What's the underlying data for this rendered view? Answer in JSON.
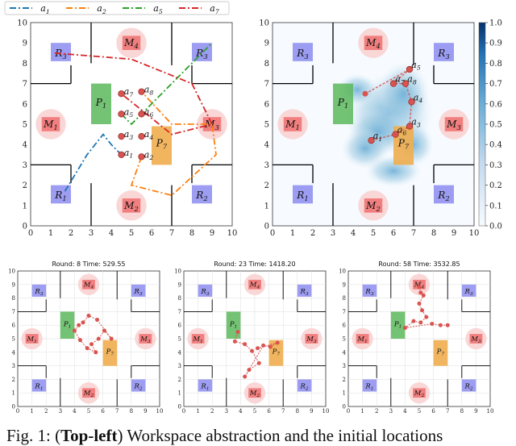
{
  "legend": {
    "items": [
      {
        "label": "a1",
        "color": "#1f77b4",
        "dash": "8,3,2,3"
      },
      {
        "label": "a2",
        "color": "#ff7f0e",
        "dash": "8,3,2,3"
      },
      {
        "label": "a5",
        "color": "#2ca02c",
        "dash": "8,3,2,3"
      },
      {
        "label": "a7",
        "color": "#d62728",
        "dash": "8,3,2,3"
      }
    ]
  },
  "colors": {
    "region_R": "#8c8cf0",
    "region_M_fill": "#f07070",
    "region_M_halo": "#f9d3d3",
    "region_P1": "#5cb85c",
    "region_P7": "#f0ad4e",
    "robot": "#d9534f"
  },
  "colorbar": {
    "ticks": [
      "0.0",
      "0.1",
      "0.2",
      "0.3",
      "0.4",
      "0.5",
      "0.6",
      "0.7",
      "0.8",
      "0.9",
      "1.0"
    ]
  },
  "subplots": [
    {
      "title": "Round: 8  Time: 529.55"
    },
    {
      "title": "Round: 23  Time: 1418.20"
    },
    {
      "title": "Round: 58  Time: 3532.85"
    }
  ],
  "caption": {
    "prefix": "Fig. 1: (",
    "bold": "Top-left",
    "suffix": ") Workspace abstraction and the initial locations"
  },
  "chart_data": [
    {
      "type": "line",
      "panel": "top-left",
      "xlim": [
        0,
        10
      ],
      "ylim": [
        0,
        10
      ],
      "xticks": [
        "0",
        "1",
        "2",
        "3",
        "4",
        "5",
        "6",
        "7",
        "8",
        "9",
        "10"
      ],
      "yticks": [
        "0",
        "1",
        "2",
        "3",
        "4",
        "5",
        "6",
        "7",
        "8",
        "9",
        "10"
      ],
      "regions": [
        {
          "label": "R1",
          "x": 1.5,
          "y": 1.5
        },
        {
          "label": "R2",
          "x": 8.5,
          "y": 1.5
        },
        {
          "label": "R3",
          "x": 1.5,
          "y": 8.5
        },
        {
          "label": "R3",
          "x": 8.5,
          "y": 8.5
        },
        {
          "label": "M1",
          "x": 1,
          "y": 5
        },
        {
          "label": "M2",
          "x": 5,
          "y": 1
        },
        {
          "label": "M3",
          "x": 9,
          "y": 5
        },
        {
          "label": "M4",
          "x": 5,
          "y": 9
        },
        {
          "label": "P1",
          "x": 3.5,
          "y": 5.9
        },
        {
          "label": "P7",
          "x": 6.5,
          "y": 3.7
        }
      ],
      "agents": [
        {
          "label": "a1",
          "x": 4.5,
          "y": 3.5
        },
        {
          "label": "a2",
          "x": 5.5,
          "y": 3.4
        },
        {
          "label": "a3",
          "x": 4.5,
          "y": 4.4
        },
        {
          "label": "a4",
          "x": 5.5,
          "y": 4.4
        },
        {
          "label": "a5",
          "x": 4.5,
          "y": 5.5
        },
        {
          "label": "a6",
          "x": 5.5,
          "y": 5.5
        },
        {
          "label": "a7",
          "x": 4.5,
          "y": 6.5
        },
        {
          "label": "a8",
          "x": 5.5,
          "y": 6.6
        }
      ],
      "series": [
        {
          "name": "a1",
          "points": [
            [
              1.7,
              1.7
            ],
            [
              2.8,
              3.5
            ],
            [
              3.6,
              4.5
            ],
            [
              4.0,
              4.0
            ],
            [
              4.5,
              3.5
            ]
          ]
        },
        {
          "name": "a2",
          "points": [
            [
              5.5,
              3.4
            ],
            [
              5.0,
              2.0
            ],
            [
              7.0,
              1.5
            ],
            [
              9.2,
              3.5
            ],
            [
              9.0,
              5.0
            ],
            [
              7.0,
              5.0
            ],
            [
              5.5,
              6.6
            ]
          ]
        },
        {
          "name": "a5",
          "points": [
            [
              4.5,
              5.5
            ],
            [
              5.0,
              5.0
            ],
            [
              6.0,
              6.0
            ],
            [
              7.5,
              7.5
            ],
            [
              8.5,
              8.5
            ],
            [
              9.0,
              9.0
            ]
          ]
        },
        {
          "name": "a7",
          "points": [
            [
              1.2,
              8.5
            ],
            [
              5.0,
              8.2
            ],
            [
              8.0,
              7.0
            ],
            [
              8.5,
              6.0
            ],
            [
              9.0,
              5.0
            ],
            [
              7.0,
              4.5
            ],
            [
              4.5,
              6.5
            ]
          ]
        }
      ]
    },
    {
      "type": "heatmap",
      "panel": "top-right",
      "xlim": [
        0,
        10
      ],
      "ylim": [
        0,
        10
      ],
      "xticks": [
        "0",
        "1",
        "2",
        "3",
        "4",
        "5",
        "6",
        "7",
        "8",
        "9",
        "10"
      ],
      "yticks": [
        "0",
        "1",
        "2",
        "3",
        "4",
        "5",
        "6",
        "7",
        "8",
        "9",
        "10"
      ],
      "colorbar_range": [
        0.0,
        1.0
      ],
      "agents": [
        {
          "label": "a1",
          "x": 4.9,
          "y": 4.2
        },
        {
          "label": "a3",
          "x": 6.8,
          "y": 4.9
        },
        {
          "label": "a4",
          "x": 6.9,
          "y": 6.1
        },
        {
          "label": "a5",
          "x": 6.8,
          "y": 7.7
        },
        {
          "label": "a6",
          "x": 6.1,
          "y": 4.5
        },
        {
          "label": "a7",
          "x": 6.0,
          "y": 7.0
        },
        {
          "label": "a8",
          "x": 6.6,
          "y": 7.0
        }
      ]
    },
    {
      "type": "scatter",
      "panel": "bottom-1",
      "title": "Round: 8  Time: 529.55",
      "xticks": [
        "0",
        "1",
        "2",
        "3",
        "4",
        "5",
        "6",
        "7",
        "8",
        "9",
        "10"
      ],
      "yticks": [
        "0",
        "1",
        "2",
        "3",
        "4",
        "5",
        "6",
        "7",
        "8",
        "9",
        "10"
      ]
    },
    {
      "type": "scatter",
      "panel": "bottom-2",
      "title": "Round: 23  Time: 1418.20",
      "xticks": [
        "0",
        "1",
        "2",
        "3",
        "4",
        "5",
        "6",
        "7",
        "8",
        "9",
        "10"
      ],
      "yticks": [
        "0",
        "1",
        "2",
        "3",
        "4",
        "5",
        "6",
        "7",
        "8",
        "9",
        "10"
      ]
    },
    {
      "type": "scatter",
      "panel": "bottom-3",
      "title": "Round: 58  Time: 3532.85",
      "xticks": [
        "0",
        "1",
        "2",
        "3",
        "4",
        "5",
        "6",
        "7",
        "8",
        "9",
        "10"
      ],
      "yticks": [
        "0",
        "1",
        "2",
        "3",
        "4",
        "5",
        "6",
        "7",
        "8",
        "9",
        "10"
      ]
    }
  ]
}
